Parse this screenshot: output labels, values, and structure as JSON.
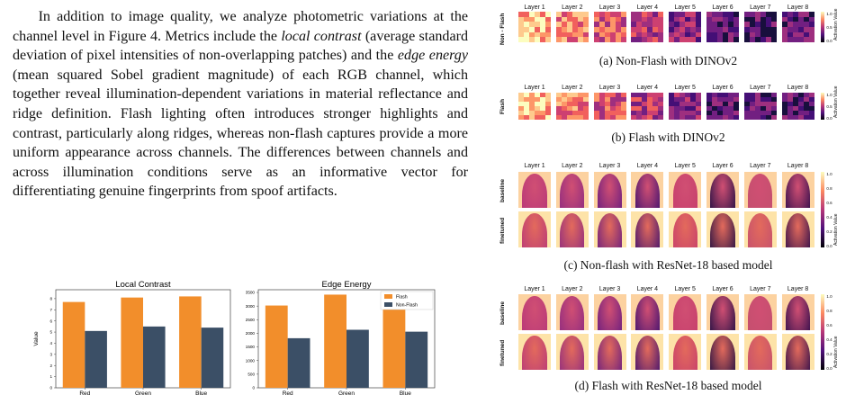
{
  "paragraph": {
    "t1": "In addition to image quality, we analyze photometric variations at the channel level in Figure 4. Metrics include the ",
    "em1": "local contrast",
    "t2": " (average standard deviation of pixel intensities of non-overlapping patches) and the ",
    "em2": "edge energy",
    "t3": " (mean squared Sobel gradient magnitude) of each RGB channel, which together reveal illumination-dependent variations in material reflectance and ridge definition. Flash lighting often introduces stronger highlights and contrast, particularly along ridges, whereas non-flash captures provide a more uniform appearance across channels. The differences between channels and across illumination conditions serve as an informative vector for differentiating genuine fingerprints from spoof artifacts."
  },
  "chart_data": [
    {
      "type": "bar",
      "title": "Local Contrast",
      "ylabel": "Value",
      "xlabel": "",
      "categories": [
        "Red",
        "Green",
        "Blue"
      ],
      "series": [
        {
          "name": "Flash",
          "values": [
            7.7,
            8.1,
            8.2
          ]
        },
        {
          "name": "Non-Flash",
          "values": [
            5.1,
            5.5,
            5.4
          ]
        }
      ],
      "ylim": [
        0,
        8.8
      ],
      "yticks": [
        0,
        1,
        2,
        3,
        4,
        5,
        6,
        7,
        8
      ],
      "colors": [
        "#f28e2b",
        "#3b4f66"
      ]
    },
    {
      "type": "bar",
      "title": "Edge Energy",
      "ylabel": "",
      "xlabel": "",
      "categories": [
        "Red",
        "Green",
        "Blue"
      ],
      "series": [
        {
          "name": "Flash",
          "values": [
            3020,
            3420,
            3420
          ]
        },
        {
          "name": "Non-Flash",
          "values": [
            1820,
            2130,
            2060
          ]
        }
      ],
      "ylim": [
        0,
        3600
      ],
      "yticks": [
        0,
        500,
        1000,
        1500,
        2000,
        2500,
        3000,
        3500
      ],
      "legend": "top-right",
      "colors": [
        "#f28e2b",
        "#3b4f66"
      ]
    }
  ],
  "figures": {
    "layers": [
      "Layer 1",
      "Layer 2",
      "Layer 3",
      "Layer 4",
      "Layer 5",
      "Layer 6",
      "Layer 7",
      "Layer 8"
    ],
    "colorbar_label": "Activation Value",
    "colorbar_ticks_a": [
      "1.0",
      "0.5",
      "0.0"
    ],
    "colorbar_ticks_b": [
      "1.0",
      "0.8",
      "0.6",
      "0.4",
      "0.2",
      "0.0"
    ],
    "a": {
      "row_labels": [
        "Non - Flash"
      ],
      "caption": "(a) Non-Flash with DINOv2"
    },
    "b": {
      "row_labels": [
        "Flash"
      ],
      "caption": "(b) Flash with DINOv2"
    },
    "c": {
      "row_labels": [
        "baseline",
        "finetuned"
      ],
      "caption": "(c) Non-flash with ResNet-18 based model"
    },
    "d": {
      "row_labels": [
        "baseline",
        "finetuned"
      ],
      "caption": "(d) Flash with ResNet-18 based model"
    }
  }
}
